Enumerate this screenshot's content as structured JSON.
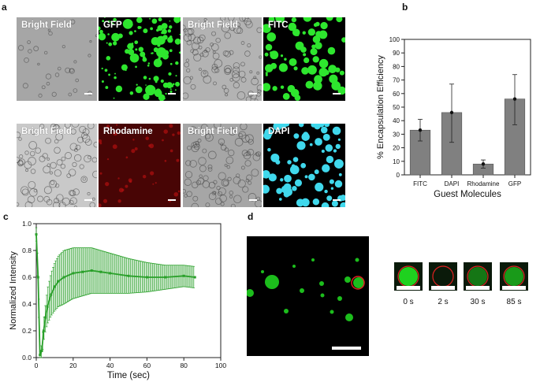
{
  "panel_letters": {
    "a": "a",
    "b": "b",
    "c": "c",
    "d": "d"
  },
  "panel_a": {
    "tiles": [
      {
        "label": "Bright Field",
        "kind": "bf"
      },
      {
        "label": "GFP",
        "kind": "fluor",
        "color": "#2ee62e"
      },
      {
        "label": "Bright Field",
        "kind": "bf"
      },
      {
        "label": "FITC",
        "kind": "fluor",
        "color": "#2ee62e"
      },
      {
        "label": "Bright Field",
        "kind": "bf"
      },
      {
        "label": "Rhodamine",
        "kind": "fluor",
        "color": "#d01818"
      },
      {
        "label": "Bright Field",
        "kind": "bf"
      },
      {
        "label": "DAPI",
        "kind": "fluor",
        "color": "#40d8ec"
      }
    ]
  },
  "chart_data": [
    {
      "type": "bar",
      "xlabel": "Guest Molecules",
      "ylabel": "% Encapsulation Efficiency",
      "categories": [
        "FITC",
        "DAPI",
        "Rhodamine",
        "GFP"
      ],
      "values": [
        33,
        46,
        8,
        56
      ],
      "error_low": [
        25,
        24,
        5,
        37
      ],
      "error_high": [
        41,
        67,
        11,
        74
      ],
      "ylim": [
        0,
        100
      ],
      "yticks": [
        0,
        10,
        20,
        30,
        40,
        50,
        60,
        70,
        80,
        90,
        100
      ],
      "bar_color": "#808080"
    },
    {
      "type": "line",
      "xlabel": "Time (sec)",
      "ylabel": "Normalized Intensity",
      "xlim": [
        0,
        100
      ],
      "ylim": [
        0,
        1.0
      ],
      "xticks": [
        0,
        20,
        40,
        60,
        80,
        100
      ],
      "yticks": [
        "0.0",
        "0.2",
        "0.4",
        "0.6",
        "0.8",
        "1.0"
      ],
      "color": "#2aa02a",
      "x": [
        0,
        1,
        2,
        3,
        4,
        5,
        6,
        8,
        10,
        12,
        15,
        20,
        25,
        30,
        35,
        40,
        50,
        60,
        70,
        80,
        86
      ],
      "y": [
        0.92,
        0.6,
        0.02,
        0.05,
        0.2,
        0.3,
        0.38,
        0.47,
        0.53,
        0.57,
        0.6,
        0.63,
        0.64,
        0.65,
        0.64,
        0.63,
        0.61,
        0.6,
        0.6,
        0.61,
        0.6
      ],
      "y_err": [
        0.05,
        0.1,
        0.02,
        0.05,
        0.08,
        0.1,
        0.13,
        0.16,
        0.18,
        0.19,
        0.2,
        0.19,
        0.18,
        0.17,
        0.16,
        0.15,
        0.13,
        0.11,
        0.09,
        0.08,
        0.08
      ]
    }
  ],
  "panel_d": {
    "frames": [
      {
        "label": "0 s",
        "fill": 1.0
      },
      {
        "label": "2 s",
        "fill": 0.0
      },
      {
        "label": "30 s",
        "fill": 0.5
      },
      {
        "label": "85 s",
        "fill": 0.7
      }
    ],
    "droplet_color": "#1fd11f",
    "roi_color": "#e02020"
  }
}
